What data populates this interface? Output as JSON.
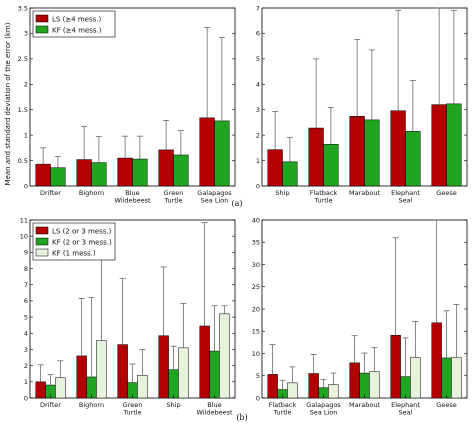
{
  "ylabel": "Mean and standard deviation of the error (km)",
  "captions": [
    "(a)",
    "(b)"
  ],
  "colors": {
    "LS": "#b20000",
    "KF": "#21a421",
    "KF1": "#e6f2dc",
    "err": "#555555"
  },
  "chart_data": [
    {
      "type": "bar",
      "row": 0,
      "col": 0,
      "categories": [
        "Drifter",
        "Bighorn",
        "Blue\nWildebeest",
        "Green\nTurtle",
        "Galapagos\nSea Lion"
      ],
      "ylim": [
        0,
        3.5
      ],
      "yticks": [
        0,
        0.5,
        1,
        1.5,
        2,
        2.5,
        3,
        3.5
      ],
      "legend": "top-left",
      "series": [
        {
          "name": "LS (≥4 mess.)",
          "key": "LS",
          "values": [
            0.43,
            0.52,
            0.55,
            0.71,
            1.34
          ],
          "err": [
            0.32,
            0.65,
            0.43,
            0.58,
            1.78
          ]
        },
        {
          "name": "KF (≥4 mess.)",
          "key": "KF",
          "values": [
            0.36,
            0.46,
            0.53,
            0.61,
            1.28
          ],
          "err": [
            0.22,
            0.51,
            0.45,
            0.48,
            1.64
          ]
        }
      ]
    },
    {
      "type": "bar",
      "row": 0,
      "col": 1,
      "categories": [
        "Ship",
        "Flatback\nTurtle",
        "Marabout",
        "Elephant\nSeal",
        "Geese"
      ],
      "ylim": [
        0,
        7
      ],
      "yticks": [
        0,
        1,
        2,
        3,
        4,
        5,
        6,
        7
      ],
      "series": [
        {
          "key": "LS",
          "values": [
            1.43,
            2.28,
            2.74,
            2.96,
            3.2
          ],
          "err": [
            1.5,
            2.72,
            3.02,
            3.95,
            3.8
          ]
        },
        {
          "key": "KF",
          "values": [
            0.95,
            1.64,
            2.6,
            2.15,
            3.23
          ],
          "err": [
            0.95,
            1.45,
            2.75,
            2.0,
            3.68
          ]
        }
      ]
    },
    {
      "type": "bar",
      "row": 1,
      "col": 0,
      "categories": [
        "Drifter",
        "Bighorn",
        "Green\nTurtle",
        "Ship",
        "Blue\nWildebeest"
      ],
      "ylim": [
        0,
        11
      ],
      "yticks": [
        0,
        1,
        2,
        3,
        4,
        5,
        6,
        7,
        8,
        9,
        10,
        11
      ],
      "legend": "top-left",
      "series": [
        {
          "name": "LS (2 or 3 mess.)",
          "key": "LS",
          "values": [
            1.0,
            2.6,
            3.3,
            3.85,
            4.45
          ],
          "err": [
            1.05,
            3.55,
            4.1,
            4.25,
            6.4
          ]
        },
        {
          "name": "KF (2 or 3 mess.)",
          "key": "KF",
          "values": [
            0.8,
            1.3,
            0.95,
            1.75,
            2.9
          ],
          "err": [
            0.65,
            4.9,
            1.15,
            1.45,
            2.8
          ]
        },
        {
          "name": "KF (1 mess.)",
          "key": "KF1",
          "values": [
            1.25,
            3.55,
            1.4,
            3.1,
            5.2
          ],
          "err": [
            1.05,
            5.0,
            1.6,
            2.75,
            0.5
          ]
        }
      ]
    },
    {
      "type": "bar",
      "row": 1,
      "col": 1,
      "categories": [
        "Flatback\nTurtle",
        "Galapagos\nSea Lion",
        "Marabout",
        "Elephant\nSeal",
        "Geese"
      ],
      "ylim": [
        0,
        40
      ],
      "yticks": [
        0,
        5,
        10,
        15,
        20,
        25,
        30,
        35,
        40
      ],
      "series": [
        {
          "key": "LS",
          "values": [
            5.3,
            5.5,
            7.9,
            14.1,
            16.9
          ],
          "err": [
            6.7,
            4.3,
            6.1,
            21.9,
            23.1
          ]
        },
        {
          "key": "KF",
          "values": [
            1.9,
            2.3,
            5.6,
            4.8,
            9.0
          ],
          "err": [
            2.1,
            1.9,
            4.5,
            8.7,
            10.6
          ]
        },
        {
          "key": "KF1",
          "values": [
            3.4,
            3.0,
            5.9,
            9.1,
            9.1
          ],
          "err": [
            3.6,
            2.6,
            5.4,
            8.1,
            11.9
          ]
        }
      ]
    }
  ]
}
